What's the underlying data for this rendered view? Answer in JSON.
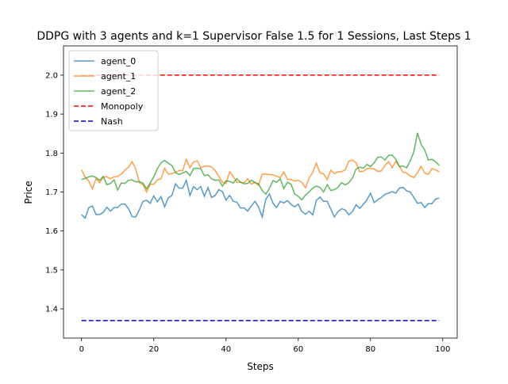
{
  "chart_data": {
    "type": "line",
    "title": "DDPG with 3 agents and k=1 Supervisor False 1.5 for 1 Sessions, Last Steps 1",
    "xlabel": "Steps",
    "ylabel": "Price",
    "xlim": [
      -5,
      104
    ],
    "ylim": [
      1.325,
      2.075
    ],
    "xticks": [
      0,
      20,
      40,
      60,
      80,
      100
    ],
    "yticks": [
      1.4,
      1.5,
      1.6,
      1.7,
      1.8,
      1.9,
      2.0
    ],
    "grid": false,
    "legend_placement": "upper-left",
    "series": [
      {
        "name": "agent_0",
        "color": "#1f77b4",
        "style": "solid",
        "values": [
          1.642,
          1.633,
          1.66,
          1.664,
          1.642,
          1.642,
          1.648,
          1.661,
          1.651,
          1.66,
          1.66,
          1.669,
          1.669,
          1.657,
          1.637,
          1.636,
          1.654,
          1.676,
          1.679,
          1.671,
          1.69,
          1.675,
          1.688,
          1.662,
          1.685,
          1.691,
          1.721,
          1.71,
          1.71,
          1.73,
          1.691,
          1.714,
          1.706,
          1.714,
          1.689,
          1.711,
          1.686,
          1.691,
          1.706,
          1.701,
          1.679,
          1.691,
          1.676,
          1.674,
          1.659,
          1.659,
          1.651,
          1.664,
          1.676,
          1.662,
          1.636,
          1.681,
          1.695,
          1.671,
          1.66,
          1.676,
          1.672,
          1.678,
          1.668,
          1.662,
          1.669,
          1.65,
          1.643,
          1.651,
          1.641,
          1.678,
          1.687,
          1.676,
          1.676,
          1.656,
          1.636,
          1.65,
          1.657,
          1.654,
          1.641,
          1.65,
          1.667,
          1.658,
          1.668,
          1.68,
          1.697,
          1.673,
          1.68,
          1.686,
          1.694,
          1.697,
          1.701,
          1.697,
          1.71,
          1.712,
          1.703,
          1.7,
          1.686,
          1.671,
          1.673,
          1.66,
          1.67,
          1.67,
          1.682,
          1.684
        ]
      },
      {
        "name": "agent_1",
        "color": "#ff7f0e",
        "style": "solid",
        "values": [
          1.757,
          1.738,
          1.728,
          1.708,
          1.734,
          1.724,
          1.738,
          1.739,
          1.734,
          1.739,
          1.74,
          1.746,
          1.756,
          1.764,
          1.778,
          1.759,
          1.724,
          1.719,
          1.7,
          1.72,
          1.72,
          1.731,
          1.734,
          1.761,
          1.746,
          1.747,
          1.751,
          1.755,
          1.755,
          1.784,
          1.762,
          1.777,
          1.78,
          1.763,
          1.766,
          1.767,
          1.764,
          1.755,
          1.74,
          1.725,
          1.722,
          1.752,
          1.74,
          1.725,
          1.725,
          1.724,
          1.734,
          1.72,
          1.725,
          1.717,
          1.746,
          1.746,
          1.745,
          1.744,
          1.74,
          1.737,
          1.751,
          1.733,
          1.732,
          1.728,
          1.73,
          1.725,
          1.711,
          1.736,
          1.75,
          1.774,
          1.749,
          1.747,
          1.732,
          1.756,
          1.747,
          1.752,
          1.752,
          1.757,
          1.779,
          1.782,
          1.775,
          1.752,
          1.753,
          1.76,
          1.761,
          1.759,
          1.753,
          1.754,
          1.768,
          1.778,
          1.762,
          1.779,
          1.766,
          1.751,
          1.749,
          1.741,
          1.737,
          1.749,
          1.766,
          1.749,
          1.745,
          1.76,
          1.757,
          1.752
        ]
      },
      {
        "name": "agent_2",
        "color": "#2ca02c",
        "style": "solid",
        "values": [
          1.732,
          1.735,
          1.739,
          1.741,
          1.737,
          1.73,
          1.74,
          1.719,
          1.722,
          1.731,
          1.705,
          1.723,
          1.722,
          1.73,
          1.731,
          1.726,
          1.727,
          1.723,
          1.708,
          1.723,
          1.739,
          1.76,
          1.775,
          1.781,
          1.774,
          1.768,
          1.75,
          1.745,
          1.749,
          1.753,
          1.742,
          1.76,
          1.761,
          1.76,
          1.742,
          1.744,
          1.734,
          1.73,
          1.731,
          1.715,
          1.729,
          1.727,
          1.723,
          1.734,
          1.725,
          1.721,
          1.722,
          1.73,
          1.724,
          1.721,
          1.704,
          1.694,
          1.709,
          1.729,
          1.725,
          1.734,
          1.709,
          1.725,
          1.72,
          1.695,
          1.689,
          1.68,
          1.692,
          1.7,
          1.71,
          1.715,
          1.712,
          1.7,
          1.719,
          1.704,
          1.706,
          1.712,
          1.724,
          1.718,
          1.724,
          1.736,
          1.759,
          1.764,
          1.761,
          1.771,
          1.765,
          1.775,
          1.789,
          1.79,
          1.782,
          1.794,
          1.795,
          1.784,
          1.765,
          1.767,
          1.762,
          1.78,
          1.803,
          1.852,
          1.822,
          1.808,
          1.782,
          1.784,
          1.778,
          1.768
        ]
      },
      {
        "name": "Monopoly",
        "color": "#ff0000",
        "style": "dashed",
        "x": [
          0,
          99
        ],
        "values": [
          2.0,
          2.0
        ]
      },
      {
        "name": "Nash",
        "color": "#0000cc",
        "style": "dashed",
        "x": [
          0,
          99
        ],
        "values": [
          1.37,
          1.37
        ]
      }
    ]
  }
}
